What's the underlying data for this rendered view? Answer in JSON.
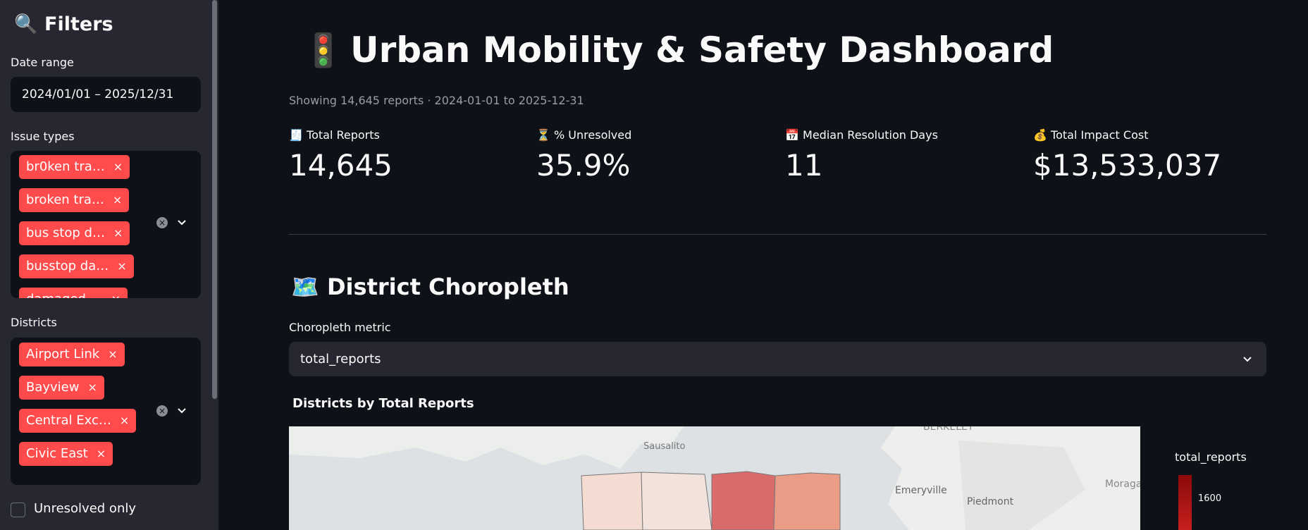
{
  "sidebar": {
    "icon": "🔍",
    "title": "Filters",
    "date_range": {
      "label": "Date range",
      "value": "2024/01/01 – 2025/12/31"
    },
    "issue_types": {
      "label": "Issue types",
      "tags": [
        "br0ken tra…",
        "broken tra…",
        "bus stop d…",
        "busstop da…",
        "damaged …"
      ]
    },
    "districts": {
      "label": "Districts",
      "tags": [
        "Airport Link",
        "Bayview",
        "Central Exc…",
        "Civic East"
      ]
    },
    "unresolved": {
      "label": "Unresolved only"
    }
  },
  "main": {
    "icon": "🚦",
    "title": "Urban Mobility & Safety Dashboard",
    "caption": "Showing 14,645 reports · 2024-01-01 to 2025-12-31",
    "metrics": [
      {
        "icon": "🧾",
        "label": "Total Reports",
        "value": "14,645"
      },
      {
        "icon": "⏳",
        "label": "% Unresolved",
        "value": "35.9%"
      },
      {
        "icon": "📅",
        "label": "Median Resolution Days",
        "value": "11"
      },
      {
        "icon": "💰",
        "label": "Total Impact Cost",
        "value": "$13,533,037"
      }
    ],
    "section": {
      "icon": "🗺️",
      "title": "District Choropleth"
    },
    "select": {
      "label": "Choropleth metric",
      "value": "total_reports"
    },
    "map": {
      "title": "Districts by Total Reports",
      "places": [
        "BERKELEY",
        "Sausalito",
        "Emeryville",
        "Piedmont",
        "Moraga"
      ],
      "colorbar": {
        "title": "total_reports",
        "ticks": [
          "1600"
        ]
      }
    }
  }
}
